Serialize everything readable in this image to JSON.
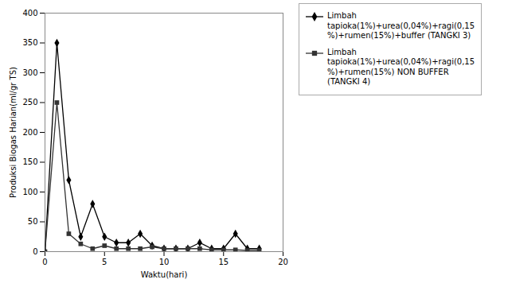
{
  "chart_data": {
    "type": "line",
    "xlabel": "Waktu(hari)",
    "ylabel": "Produksi Biogas Harian(ml/gr TS)",
    "x": [
      0,
      1,
      2,
      3,
      4,
      5,
      6,
      7,
      8,
      9,
      10,
      11,
      12,
      13,
      14,
      15,
      16,
      17,
      18
    ],
    "series": [
      {
        "name": "Limbah \ntapioka(1%)+urea(0,04%)+ragi(0,15\n%)+rumen(15%)+buffer (TANGKI 3)",
        "color": "#000000",
        "marker": "diamond",
        "values": [
          0,
          350,
          120,
          25,
          80,
          25,
          15,
          15,
          30,
          10,
          5,
          5,
          5,
          15,
          5,
          5,
          30,
          5,
          5
        ]
      },
      {
        "name": "Limbah \ntapioka(1%)+urea(0,04%)+ragi(0,15\n%)+rumen(15%) NON BUFFER\n(TANGKI 4)",
        "color": "#333333",
        "marker": "square",
        "values": [
          0,
          250,
          30,
          13,
          5,
          10,
          5,
          5,
          5,
          8,
          5,
          5,
          5,
          5,
          3,
          3,
          3,
          2,
          2
        ]
      }
    ],
    "xlim": [
      0,
      20
    ],
    "ylim": [
      0,
      400
    ],
    "xticks": [
      0,
      5,
      10,
      15,
      20
    ],
    "yticks": [
      0,
      50,
      100,
      150,
      200,
      250,
      300,
      350,
      400
    ],
    "grid": false,
    "legend": "upper right"
  }
}
